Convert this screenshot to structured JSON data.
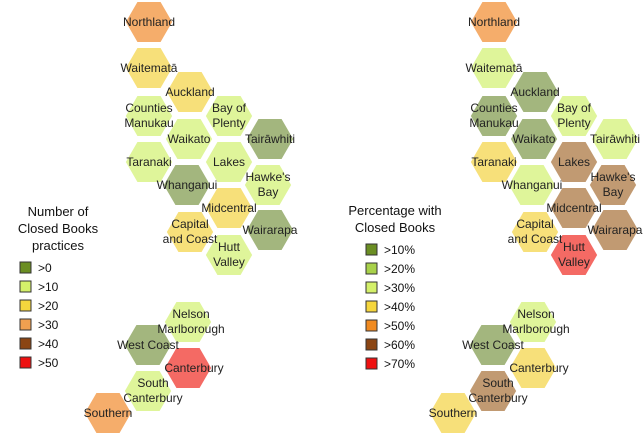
{
  "legends": {
    "left": {
      "title_lines": [
        "Number of",
        "Closed Books",
        "practices"
      ],
      "items": [
        {
          "label": ">0",
          "color": "#6b8e23"
        },
        {
          "label": ">10",
          "color": "#d4f06a"
        },
        {
          "label": ">20",
          "color": "#f5d63d"
        },
        {
          "label": ">30",
          "color": "#f0a050"
        },
        {
          "label": ">40",
          "color": "#8b4513"
        },
        {
          "label": ">50",
          "color": "#ee1111"
        }
      ]
    },
    "right": {
      "title_lines": [
        "Percentage with",
        "Closed Books"
      ],
      "items": [
        {
          "label": ">10%",
          "color": "#6b8e23"
        },
        {
          "label": ">20%",
          "color": "#a8d14a"
        },
        {
          "label": ">30%",
          "color": "#d4f06a"
        },
        {
          "label": ">40%",
          "color": "#f5d63d"
        },
        {
          "label": ">50%",
          "color": "#f08a20"
        },
        {
          "label": ">60%",
          "color": "#8b4513"
        },
        {
          "label": ">70%",
          "color": "#ee1111"
        }
      ]
    }
  },
  "maps": [
    {
      "name": "number_of_practices",
      "regions": [
        {
          "name": "Northland",
          "bin": ">30",
          "color": "#f5ad6b"
        },
        {
          "name": "Waitematā",
          "bin": ">20",
          "color": "#f7e07a"
        },
        {
          "name": "Auckland",
          "bin": ">20",
          "color": "#f7e07a"
        },
        {
          "name": "Counties Manukau",
          "bin": ">10",
          "color": "#dff59a"
        },
        {
          "name": "Bay of Plenty",
          "bin": ">10",
          "color": "#dff59a"
        },
        {
          "name": "Waikato",
          "bin": ">10",
          "color": "#dff59a"
        },
        {
          "name": "Tairāwhiti",
          "bin": ">0",
          "color": "#a3b67e"
        },
        {
          "name": "Taranaki",
          "bin": ">10",
          "color": "#dff59a"
        },
        {
          "name": "Lakes",
          "bin": ">10",
          "color": "#dff59a"
        },
        {
          "name": "Whanganui",
          "bin": ">0",
          "color": "#a3b67e"
        },
        {
          "name": "Hawke's Bay",
          "bin": ">10",
          "color": "#dff59a"
        },
        {
          "name": "Midcentral",
          "bin": ">20",
          "color": "#f7e07a"
        },
        {
          "name": "Capital and Coast",
          "bin": ">20",
          "color": "#f7e07a"
        },
        {
          "name": "Wairarapa",
          "bin": ">0",
          "color": "#a3b67e"
        },
        {
          "name": "Hutt Valley",
          "bin": ">10",
          "color": "#dff59a"
        },
        {
          "name": "Nelson Marlborough",
          "bin": ">10",
          "color": "#dff59a"
        },
        {
          "name": "West Coast",
          "bin": ">0",
          "color": "#a3b67e"
        },
        {
          "name": "Canterbury",
          "bin": ">50",
          "color": "#f46a64"
        },
        {
          "name": "South Canterbury",
          "bin": ">10",
          "color": "#dff59a"
        },
        {
          "name": "Southern",
          "bin": ">30",
          "color": "#f5ad6b"
        }
      ]
    },
    {
      "name": "percentage_with_closed_books",
      "regions": [
        {
          "name": "Northland",
          "bin": ">50%",
          "color": "#f5ad6b"
        },
        {
          "name": "Waitematā",
          "bin": ">30%",
          "color": "#dff59a"
        },
        {
          "name": "Auckland",
          "bin": ">10%",
          "color": "#a3b67e"
        },
        {
          "name": "Counties Manukau",
          "bin": ">10%",
          "color": "#a3b67e"
        },
        {
          "name": "Bay of Plenty",
          "bin": ">30%",
          "color": "#dff59a"
        },
        {
          "name": "Waikato",
          "bin": ">10%",
          "color": "#a3b67e"
        },
        {
          "name": "Tairāwhiti",
          "bin": ">30%",
          "color": "#dff59a"
        },
        {
          "name": "Taranaki",
          "bin": ">40%",
          "color": "#f7e07a"
        },
        {
          "name": "Lakes",
          "bin": ">60%",
          "color": "#c19a72"
        },
        {
          "name": "Whanganui",
          "bin": ">30%",
          "color": "#dff59a"
        },
        {
          "name": "Hawke's Bay",
          "bin": ">60%",
          "color": "#c19a72"
        },
        {
          "name": "Midcentral",
          "bin": ">60%",
          "color": "#c19a72"
        },
        {
          "name": "Capital and Coast",
          "bin": ">40%",
          "color": "#f7e07a"
        },
        {
          "name": "Wairarapa",
          "bin": ">60%",
          "color": "#c19a72"
        },
        {
          "name": "Hutt Valley",
          "bin": ">70%",
          "color": "#f46a64"
        },
        {
          "name": "Nelson Marlborough",
          "bin": ">30%",
          "color": "#dff59a"
        },
        {
          "name": "West Coast",
          "bin": ">10%",
          "color": "#a3b67e"
        },
        {
          "name": "Canterbury",
          "bin": ">40%",
          "color": "#f7e07a"
        },
        {
          "name": "South Canterbury",
          "bin": ">60%",
          "color": "#c19a72"
        },
        {
          "name": "Southern",
          "bin": ">40%",
          "color": "#f7e07a"
        }
      ]
    }
  ]
}
